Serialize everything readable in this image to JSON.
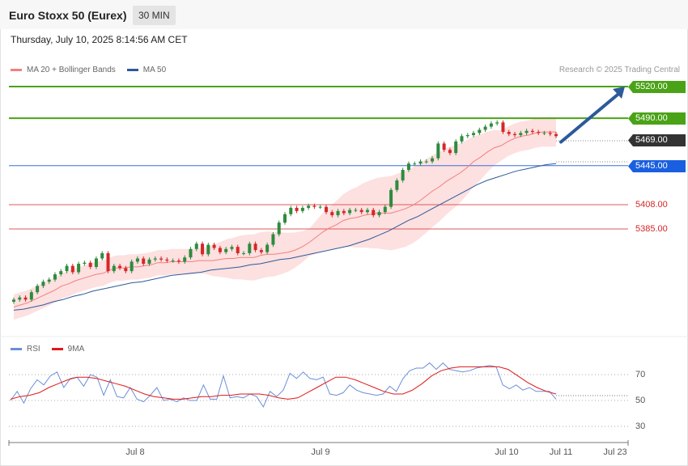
{
  "header": {
    "title": "Euro Stoxx 50 (Eurex)",
    "interval": "30 MIN",
    "datetime": "Thursday, July 10, 2025 8:14:56 AM CET"
  },
  "legend_main": {
    "ma20_label": "MA 20 + Bollinger Bands",
    "ma50_label": "MA 50",
    "credit": "Research © 2025 Trading Central"
  },
  "legend_rsi": {
    "rsi_label": "RSI",
    "ma9_label": "9MA"
  },
  "colors": {
    "up_candle": "#2e8b3e",
    "down_candle": "#d62728",
    "bollinger_fill": "#fde0e0",
    "ma20": "#f08080",
    "ma50": "#2c5a9a",
    "resistance": "#4aa316",
    "pivot_line": "#3b6fd9",
    "support": "#e05a5a",
    "last_price": "#333333",
    "rsi": "#6a8fd8",
    "rsi_ma": "#e01818"
  },
  "levels": [
    {
      "label": "5520.00",
      "value": 5520,
      "kind": "resistance"
    },
    {
      "label": "5490.00",
      "value": 5490,
      "kind": "resistance"
    },
    {
      "label": "5469.00",
      "value": 5469,
      "kind": "last"
    },
    {
      "label": "5445.00",
      "value": 5445,
      "kind": "pivot"
    },
    {
      "label": "5408.00",
      "value": 5408,
      "kind": "support"
    },
    {
      "label": "5385.00",
      "value": 5385,
      "kind": "support"
    }
  ],
  "x_axis_labels": [
    "Jul 8",
    "Jul 9",
    "Jul 10",
    "Jul 11",
    "Jul 23"
  ],
  "rsi_ticks": [
    "70",
    "50",
    "30"
  ],
  "chart_data": [
    {
      "type": "candlestick",
      "y_unit": "index points",
      "ylim": [
        5298,
        5533
      ],
      "x_categories": [
        "Jul 8",
        "Jul 9",
        "Jul 10",
        "Jul 11",
        "Jul 23"
      ],
      "closes": [
        5318,
        5320,
        5318,
        5325,
        5331,
        5335,
        5337,
        5342,
        5345,
        5350,
        5344,
        5352,
        5353,
        5349,
        5357,
        5362,
        5345,
        5350,
        5348,
        5345,
        5354,
        5357,
        5352,
        5356,
        5357,
        5356,
        5355,
        5355,
        5354,
        5358,
        5366,
        5371,
        5361,
        5370,
        5367,
        5363,
        5366,
        5368,
        5362,
        5362,
        5371,
        5365,
        5363,
        5370,
        5380,
        5391,
        5399,
        5405,
        5402,
        5405,
        5407,
        5406,
        5406,
        5401,
        5398,
        5402,
        5400,
        5403,
        5403,
        5401,
        5403,
        5398,
        5401,
        5406,
        5422,
        5431,
        5441,
        5447,
        5447,
        5449,
        5449,
        5452,
        5466,
        5460,
        5457,
        5468,
        5473,
        5474,
        5476,
        5479,
        5482,
        5485,
        5486,
        5477,
        5475,
        5474,
        5476,
        5478,
        5477,
        5476,
        5476,
        5475,
        5473
      ],
      "ma20": [
        5311,
        5313,
        5315,
        5318,
        5321,
        5324,
        5327,
        5331,
        5333,
        5336,
        5338,
        5340,
        5342,
        5343,
        5346,
        5348,
        5348,
        5349,
        5349,
        5350,
        5351,
        5353,
        5353,
        5354,
        5354,
        5354,
        5354,
        5355,
        5355,
        5355,
        5356,
        5357,
        5357,
        5358,
        5358,
        5358,
        5360,
        5361,
        5361,
        5362,
        5363,
        5365,
        5368,
        5372,
        5377,
        5382,
        5386,
        5389,
        5393,
        5395,
        5396,
        5398,
        5399,
        5400,
        5400,
        5400,
        5402,
        5404,
        5407,
        5411,
        5416,
        5421,
        5425,
        5430,
        5434,
        5438,
        5443,
        5449,
        5453,
        5458,
        5462,
        5464,
        5468,
        5471,
        5473,
        5474,
        5476,
        5477,
        5477,
        5477
      ],
      "ma50": [
        5308,
        5309,
        5311,
        5313,
        5316,
        5318,
        5321,
        5323,
        5326,
        5328,
        5330,
        5332,
        5334,
        5335,
        5337,
        5339,
        5341,
        5342,
        5343,
        5344,
        5346,
        5347,
        5348,
        5349,
        5351,
        5352,
        5354,
        5356,
        5357,
        5359,
        5361,
        5363,
        5365,
        5367,
        5369,
        5372,
        5375,
        5379,
        5383,
        5388,
        5393,
        5397,
        5402,
        5407,
        5412,
        5417,
        5422,
        5427,
        5431,
        5434,
        5437,
        5440,
        5442,
        5444,
        5446,
        5447
      ],
      "projection": {
        "from": 5469,
        "to": 5520
      }
    },
    {
      "type": "line",
      "name": "RSI",
      "ylim": [
        20,
        80
      ],
      "rsi": [
        50,
        57,
        48,
        59,
        66,
        62,
        69,
        72,
        60,
        67,
        68,
        61,
        70,
        68,
        54,
        66,
        53,
        52,
        60,
        51,
        49,
        54,
        60,
        50,
        51,
        49,
        52,
        50,
        50,
        62,
        51,
        51,
        69,
        52,
        53,
        52,
        55,
        53,
        45,
        57,
        53,
        58,
        71,
        67,
        72,
        67,
        66,
        68,
        55,
        54,
        56,
        62,
        58,
        56,
        55,
        54,
        55,
        61,
        57,
        67,
        73,
        75,
        75,
        79,
        74,
        79,
        74,
        73,
        72,
        73,
        75,
        76,
        77,
        76,
        62,
        59,
        62,
        58,
        60,
        57,
        57,
        57,
        51
      ],
      "rsi_ma": [
        51,
        53,
        54,
        56,
        60,
        63,
        66,
        68,
        68,
        67,
        65,
        63,
        61,
        58,
        55,
        53,
        52,
        51,
        51,
        52,
        53,
        53,
        54,
        54,
        55,
        55,
        55,
        54,
        52,
        51,
        52,
        56,
        60,
        64,
        68,
        68,
        66,
        63,
        60,
        57,
        55,
        55,
        58,
        63,
        69,
        73,
        75,
        76,
        76,
        76,
        76,
        76,
        74,
        69,
        64,
        60,
        57,
        55
      ]
    }
  ]
}
